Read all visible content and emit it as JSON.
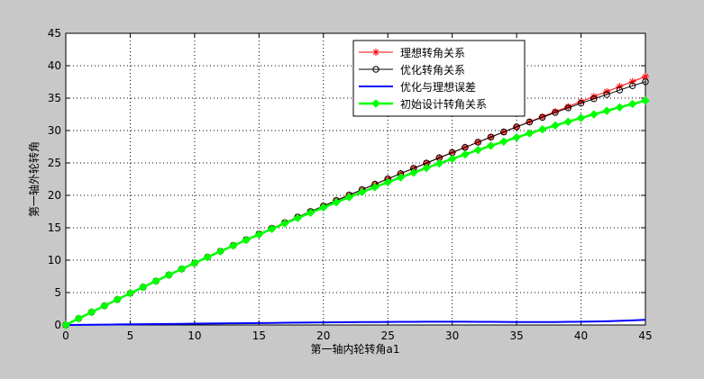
{
  "chart_data": {
    "type": "line",
    "xlabel": "第一轴内轮转角a1",
    "ylabel": "第一轴外轮转角",
    "x": [
      0,
      1,
      2,
      3,
      4,
      5,
      6,
      7,
      8,
      9,
      10,
      11,
      12,
      13,
      14,
      15,
      16,
      17,
      18,
      19,
      20,
      21,
      22,
      23,
      24,
      25,
      26,
      27,
      28,
      29,
      30,
      31,
      32,
      33,
      34,
      35,
      36,
      37,
      38,
      39,
      40,
      41,
      42,
      43,
      44,
      45
    ],
    "xlim": [
      0,
      45
    ],
    "xticks": [
      0,
      5,
      10,
      15,
      20,
      25,
      30,
      35,
      40,
      45
    ],
    "ylim": [
      0,
      45
    ],
    "yticks": [
      0,
      5,
      10,
      15,
      20,
      25,
      30,
      35,
      40,
      45
    ],
    "grid": true,
    "legend": "northeast",
    "series": [
      {
        "name": "理想转角关系",
        "color": "#ff0000",
        "marker": "star",
        "values": [
          0,
          1.0,
          1.98,
          2.96,
          3.93,
          4.89,
          5.84,
          6.78,
          7.72,
          8.64,
          9.56,
          10.47,
          11.38,
          12.28,
          13.16,
          14.05,
          14.92,
          15.79,
          16.65,
          17.51,
          18.36,
          19.21,
          20.05,
          20.88,
          21.72,
          22.54,
          23.36,
          24.17,
          24.98,
          25.8,
          26.6,
          27.4,
          28.2,
          28.99,
          29.78,
          30.57,
          31.36,
          32.13,
          32.92,
          33.69,
          34.46,
          35.25,
          36.0,
          36.79,
          37.55,
          38.33
        ]
      },
      {
        "name": "优化转角关系",
        "color": "#000000",
        "marker": "circle",
        "values": [
          0,
          1.0,
          1.98,
          2.96,
          3.93,
          4.89,
          5.84,
          6.78,
          7.72,
          8.64,
          9.56,
          10.47,
          11.38,
          12.28,
          13.16,
          14.05,
          14.92,
          15.79,
          16.65,
          17.51,
          18.36,
          19.21,
          20.05,
          20.88,
          21.72,
          22.54,
          23.36,
          24.17,
          24.98,
          25.8,
          26.6,
          27.4,
          28.2,
          28.99,
          29.78,
          30.57,
          31.31,
          32.03,
          32.77,
          33.49,
          34.21,
          34.9,
          35.55,
          36.24,
          36.9,
          37.53
        ]
      },
      {
        "name": "优化与理想误差",
        "color": "#0000ff",
        "marker": "none",
        "values": [
          0,
          0.02,
          0.04,
          0.06,
          0.08,
          0.1,
          0.12,
          0.14,
          0.16,
          0.18,
          0.2,
          0.22,
          0.24,
          0.26,
          0.28,
          0.3,
          0.32,
          0.34,
          0.36,
          0.38,
          0.4,
          0.42,
          0.44,
          0.45,
          0.46,
          0.47,
          0.48,
          0.49,
          0.5,
          0.5,
          0.5,
          0.5,
          0.49,
          0.48,
          0.47,
          0.46,
          0.45,
          0.45,
          0.46,
          0.48,
          0.5,
          0.54,
          0.58,
          0.64,
          0.71,
          0.8
        ]
      },
      {
        "name": "初始设计转角关系",
        "color": "#00ff00",
        "marker": "diamond",
        "values": [
          0,
          1.0,
          1.98,
          2.96,
          3.93,
          4.89,
          5.84,
          6.78,
          7.72,
          8.64,
          9.55,
          10.46,
          11.35,
          12.23,
          13.11,
          13.97,
          14.82,
          15.67,
          16.5,
          17.32,
          18.13,
          18.93,
          19.72,
          20.5,
          21.27,
          22.02,
          22.77,
          23.5,
          24.22,
          24.93,
          25.63,
          26.32,
          26.99,
          27.65,
          28.3,
          28.94,
          29.56,
          30.18,
          30.78,
          31.36,
          31.94,
          32.5,
          33.04,
          33.58,
          34.1,
          34.61
        ]
      }
    ]
  }
}
